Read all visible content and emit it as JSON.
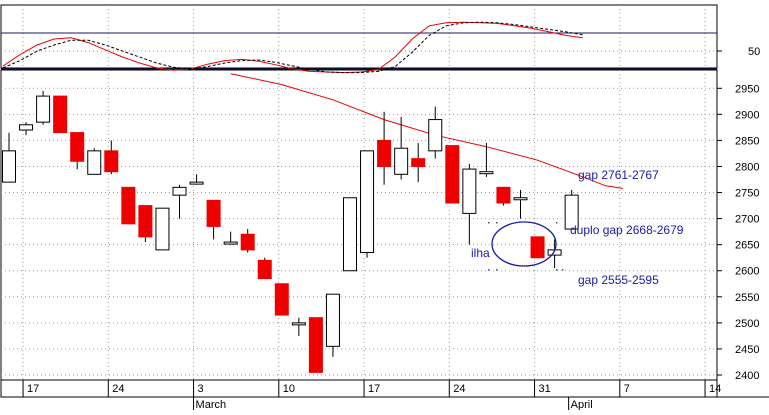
{
  "colors": {
    "up_fill": "#ffffff",
    "down_fill": "#ee0000",
    "outline": "#000000",
    "ma_line": "#ee0000",
    "stoch_k": "#ee0000",
    "stoch_d": "#000000",
    "annotation": "#1a1aaa",
    "grid": "#9a9a9a",
    "frame": "#000000"
  },
  "chart_data": [
    {
      "type": "line",
      "panel": "oscillator",
      "ylim": [
        12,
        117
      ],
      "yticks": [
        50
      ],
      "reference_levels": [
        80,
        20
      ],
      "series": [
        {
          "style": "solid",
          "color": "#ee0000",
          "values": [
            25,
            44,
            60,
            70,
            72,
            64,
            52,
            40,
            30,
            22,
            18,
            20,
            28,
            34,
            36,
            33,
            27,
            20,
            16,
            15,
            14,
            15,
            19,
            40,
            70,
            92,
            97,
            98,
            97,
            96,
            92,
            88,
            82,
            76,
            72
          ]
        },
        {
          "style": "dashed",
          "color": "#000000",
          "values": [
            22,
            34,
            50,
            60,
            68,
            68,
            60,
            50,
            40,
            30,
            23,
            20,
            24,
            30,
            34,
            35,
            31,
            25,
            19,
            15,
            14,
            14,
            16,
            24,
            48,
            76,
            92,
            97,
            98,
            97,
            94,
            90,
            86,
            82,
            77
          ]
        }
      ]
    },
    {
      "type": "candlestick",
      "panel": "price",
      "ylim": [
        2380,
        2980
      ],
      "yticks": [
        2400,
        2450,
        2500,
        2550,
        2600,
        2650,
        2700,
        2750,
        2800,
        2850,
        2900,
        2950
      ],
      "x_tick_labels": [
        "17",
        "24",
        "3",
        "10",
        "17",
        "24",
        "31",
        "7",
        "14"
      ],
      "month_labels": [
        "March",
        "April"
      ],
      "candles": [
        {
          "open": 2770,
          "high": 2865,
          "low": 2770,
          "close": 2830
        },
        {
          "open": 2870,
          "high": 2885,
          "low": 2860,
          "close": 2880
        },
        {
          "open": 2885,
          "high": 2945,
          "low": 2880,
          "close": 2935
        },
        {
          "open": 2935,
          "high": 2935,
          "low": 2865,
          "close": 2865
        },
        {
          "open": 2865,
          "high": 2865,
          "low": 2795,
          "close": 2810
        },
        {
          "open": 2785,
          "high": 2835,
          "low": 2785,
          "close": 2830
        },
        {
          "open": 2830,
          "high": 2850,
          "low": 2785,
          "close": 2790
        },
        {
          "open": 2760,
          "high": 2760,
          "low": 2690,
          "close": 2690
        },
        {
          "open": 2725,
          "high": 2725,
          "low": 2655,
          "close": 2665
        },
        {
          "open": 2640,
          "high": 2720,
          "low": 2640,
          "close": 2720
        },
        {
          "open": 2745,
          "high": 2765,
          "low": 2700,
          "close": 2760
        },
        {
          "open": 2770,
          "high": 2785,
          "low": 2765,
          "close": 2770
        },
        {
          "open": 2735,
          "high": 2735,
          "low": 2660,
          "close": 2685
        },
        {
          "open": 2655,
          "high": 2675,
          "low": 2650,
          "close": 2655
        },
        {
          "open": 2670,
          "high": 2680,
          "low": 2635,
          "close": 2640
        },
        {
          "open": 2620,
          "high": 2625,
          "low": 2585,
          "close": 2585
        },
        {
          "open": 2575,
          "high": 2575,
          "low": 2515,
          "close": 2515
        },
        {
          "open": 2500,
          "high": 2510,
          "low": 2475,
          "close": 2500
        },
        {
          "open": 2510,
          "high": 2510,
          "low": 2405,
          "close": 2405
        },
        {
          "open": 2455,
          "high": 2555,
          "low": 2435,
          "close": 2555
        },
        {
          "open": 2600,
          "high": 2740,
          "low": 2600,
          "close": 2740
        },
        {
          "open": 2635,
          "high": 2830,
          "low": 2625,
          "close": 2830
        },
        {
          "open": 2850,
          "high": 2905,
          "low": 2765,
          "close": 2800
        },
        {
          "open": 2785,
          "high": 2895,
          "low": 2775,
          "close": 2835
        },
        {
          "open": 2815,
          "high": 2845,
          "low": 2770,
          "close": 2800
        },
        {
          "open": 2830,
          "high": 2915,
          "low": 2815,
          "close": 2890
        },
        {
          "open": 2840,
          "high": 2840,
          "low": 2730,
          "close": 2730
        },
        {
          "open": 2710,
          "high": 2805,
          "low": 2650,
          "close": 2795
        },
        {
          "open": 2790,
          "high": 2845,
          "low": 2780,
          "close": 2790
        },
        {
          "open": 2760,
          "high": 2760,
          "low": 2725,
          "close": 2730
        },
        {
          "open": 2740,
          "high": 2755,
          "low": 2700,
          "close": 2740
        },
        {
          "open": 2665,
          "high": 2665,
          "low": 2625,
          "close": 2625
        },
        {
          "open": 2630,
          "high": 2660,
          "low": 2605,
          "close": 2640
        },
        {
          "open": 2680,
          "high": 2755,
          "low": 2680,
          "close": 2745
        }
      ],
      "moving_average": [
        {
          "index": 13,
          "value": 2978
        },
        {
          "index": 16,
          "value": 2957
        },
        {
          "index": 19,
          "value": 2928
        },
        {
          "index": 22,
          "value": 2890
        },
        {
          "index": 25,
          "value": 2860
        },
        {
          "index": 28,
          "value": 2838
        },
        {
          "index": 31,
          "value": 2812
        },
        {
          "index": 33,
          "value": 2788
        },
        {
          "index": 35,
          "value": 2763
        },
        {
          "index": 36,
          "value": 2758
        }
      ],
      "annotations": [
        {
          "text": "gap 2761-2767"
        },
        {
          "text": "duplo gap 2668-2679"
        },
        {
          "text": "gap 2555-2595"
        },
        {
          "text": "ilha"
        }
      ]
    }
  ]
}
